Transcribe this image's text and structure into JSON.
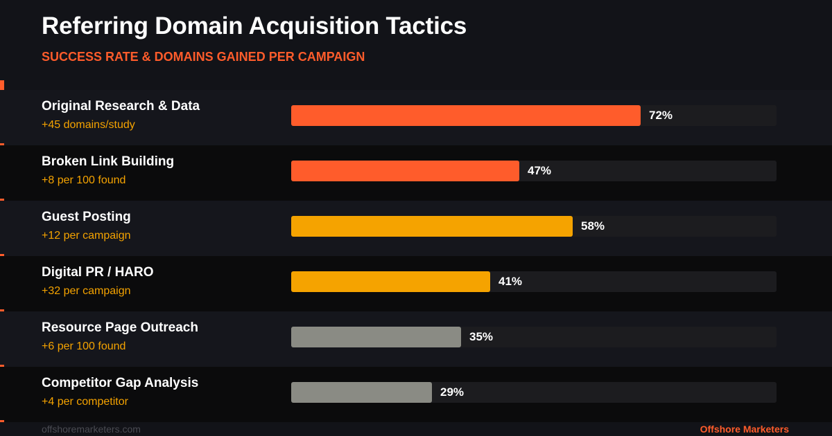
{
  "header": {
    "title": "Referring Domain Acquisition Tactics",
    "subtitle": "SUCCESS RATE & DOMAINS GAINED PER CAMPAIGN"
  },
  "footer": {
    "website": "offshoremarketers.com",
    "brand": "Offshore Marketers"
  },
  "colors": {
    "background": "#121318",
    "accent": "#ff5c2b",
    "secondary": "#f5a300",
    "neutral": "#8a8b84",
    "track": "#1c1c1f"
  },
  "chart_data": {
    "type": "bar",
    "orientation": "horizontal",
    "title": "Referring Domain Acquisition Tactics",
    "subtitle": "SUCCESS RATE & DOMAINS GAINED PER CAMPAIGN",
    "xlim": [
      0,
      100
    ],
    "unit": "%",
    "categories": [
      "Original Research & Data",
      "Broken Link Building",
      "Guest Posting",
      "Digital PR / HARO",
      "Resource Page Outreach",
      "Competitor Gap Analysis"
    ],
    "values": [
      72,
      47,
      58,
      41,
      35,
      29
    ],
    "value_labels": [
      "72%",
      "47%",
      "58%",
      "41%",
      "35%",
      "29%"
    ],
    "domains_gained": [
      "+45 domains/study",
      "+8 per 100 found",
      "+12 per campaign",
      "+32 per campaign",
      "+6 per 100 found",
      "+4 per competitor"
    ],
    "bar_colors": [
      "#ff5c2b",
      "#ff5c2b",
      "#f5a300",
      "#f5a300",
      "#8a8b84",
      "#8a8b84"
    ]
  }
}
